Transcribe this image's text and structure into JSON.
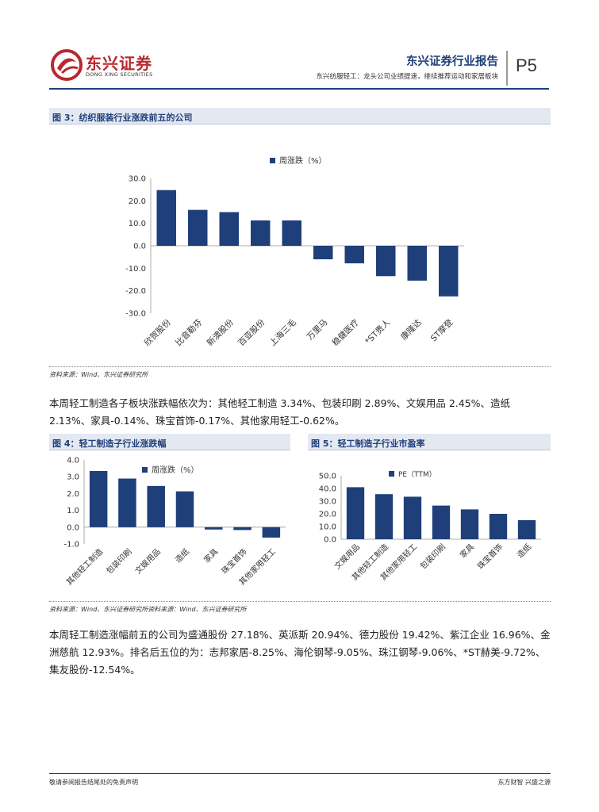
{
  "header": {
    "logo_name": "东兴证券",
    "logo_sub": "DONG XING SECURITIES",
    "report_title": "东兴证券行业报告",
    "report_subtitle": "东兴纺服轻工：龙头公司业绩提速，继续推荐运动和家居板块",
    "page_label": "P5"
  },
  "figure3": {
    "title": "图 3：纺织服装行业涨跌前五的公司",
    "source": "资料来源：Wind、东兴证券研究所"
  },
  "paragraph1": "本周轻工制造各子板块涨跌幅依次为：其他轻工制造 3.34%、包装印刷 2.89%、文娱用品 2.45%、造纸 2.13%、家具-0.14%、珠宝首饰-0.17%、其他家用轻工-0.62%。",
  "figure4": {
    "title": "图 4：轻工制造子行业涨跌幅"
  },
  "figure5": {
    "title": "图 5：轻工制造子行业市盈率"
  },
  "source_row": "资料来源：Wind、东兴证券研究所资料来源：Wind、东兴证券研究所",
  "paragraph2": "本周轻工制造涨幅前五的公司为盛通股份 27.18%、英派斯 20.94%、德力股份 19.42%、紫江企业 16.96%、金洲慈航 12.93%。排名后五位的为：志邦家居-8.25%、海伦钢琴-9.05%、珠江钢琴-9.06%、*ST赫美-9.72%、集友股份-12.54%。",
  "footer": {
    "disclaimer": "敬请参阅报告结尾处的免责声明",
    "slogan": "东方财智 兴盛之源"
  },
  "colors": {
    "bar": "#1f3f7a",
    "brand_red": "#b8282e"
  },
  "chart_data": [
    {
      "type": "bar",
      "categories": [
        "欣贺股份",
        "比音勒芬",
        "新澳股份",
        "百亚股份",
        "上海三毛",
        "万里马",
        "稳健医疗",
        "*ST贵人",
        "康隆达",
        "ST摩登"
      ],
      "series": [
        {
          "name": "周涨跌（%）",
          "values": [
            24.8,
            16.0,
            15.0,
            11.3,
            11.3,
            -6.0,
            -7.8,
            -13.5,
            -15.5,
            -22.5
          ]
        }
      ],
      "yticks": [
        "30.0",
        "20.0",
        "10.0",
        "0.0",
        "-10.0",
        "-20.0",
        "-30.0"
      ],
      "ylim": [
        -30,
        30
      ],
      "legend": "top"
    },
    {
      "type": "bar",
      "categories": [
        "其他轻工制造",
        "包装印刷",
        "文娱用品",
        "造纸",
        "家具",
        "珠宝首饰",
        "其他家用轻工"
      ],
      "series": [
        {
          "name": "周涨跌（%）",
          "values": [
            3.34,
            2.89,
            2.45,
            2.13,
            -0.14,
            -0.17,
            -0.62
          ]
        }
      ],
      "yticks": [
        "4.0",
        "3.0",
        "2.0",
        "1.0",
        "0.0",
        "-1.0"
      ],
      "ylim": [
        -1,
        4
      ],
      "legend": "top"
    },
    {
      "type": "bar",
      "categories": [
        "文娱用品",
        "其他轻工制造",
        "其他家用轻工",
        "包装印刷",
        "家具",
        "珠宝首饰",
        "造纸"
      ],
      "series": [
        {
          "name": "PE（TTM）",
          "values": [
            41.0,
            35.5,
            33.5,
            26.5,
            23.5,
            20.0,
            15.0
          ]
        }
      ],
      "yticks": [
        "50.0",
        "40.0",
        "30.0",
        "20.0",
        "10.0",
        "0.0"
      ],
      "ylim": [
        0,
        50
      ],
      "legend": "top"
    }
  ]
}
